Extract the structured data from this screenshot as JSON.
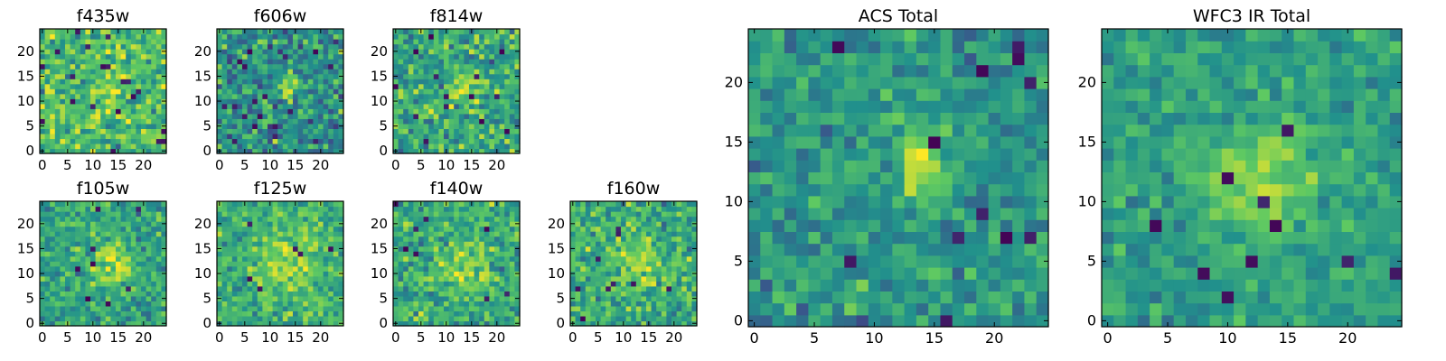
{
  "colormap": "viridis",
  "colormap_stops": [
    "#440154",
    "#3b528b",
    "#21918c",
    "#5ec962",
    "#fde725"
  ],
  "chart_data": [
    {
      "type": "heatmap",
      "title": "f435w",
      "size": 25,
      "xticks": [
        0,
        5,
        10,
        15,
        20
      ],
      "yticks": [
        0,
        5,
        10,
        15,
        20
      ],
      "tick_labels_x": [
        "0",
        "5",
        "10",
        "15",
        "20"
      ],
      "tick_labels_y": [
        "0",
        "5",
        "10",
        "15",
        "20"
      ],
      "source": {
        "cx": 14,
        "cy": 13,
        "amp": 0.22,
        "sigma": 2.0
      },
      "noise": 0.28,
      "baseline": 0.68,
      "seed": 11,
      "holes": 20
    },
    {
      "type": "heatmap",
      "title": "f606w",
      "size": 25,
      "xticks": [
        0,
        5,
        10,
        15,
        20
      ],
      "yticks": [
        0,
        5,
        10,
        15,
        20
      ],
      "tick_labels_x": [
        "0",
        "5",
        "10",
        "15",
        "20"
      ],
      "tick_labels_y": [
        "0",
        "5",
        "10",
        "15",
        "20"
      ],
      "source": {
        "cx": 14,
        "cy": 13,
        "amp": 0.3,
        "sigma": 1.6
      },
      "noise": 0.3,
      "baseline": 0.5,
      "seed": 23,
      "holes": 16
    },
    {
      "type": "heatmap",
      "title": "f814w",
      "size": 25,
      "xticks": [
        0,
        5,
        10,
        15,
        20
      ],
      "yticks": [
        0,
        5,
        10,
        15,
        20
      ],
      "tick_labels_x": [
        "0",
        "5",
        "10",
        "15",
        "20"
      ],
      "tick_labels_y": [
        "0",
        "5",
        "10",
        "15",
        "20"
      ],
      "source": {
        "cx": 14,
        "cy": 13,
        "amp": 0.25,
        "sigma": 2.2
      },
      "noise": 0.28,
      "baseline": 0.6,
      "seed": 37,
      "holes": 14
    },
    {
      "type": "heatmap",
      "title": "f105w",
      "size": 25,
      "xticks": [
        0,
        5,
        10,
        15,
        20
      ],
      "yticks": [
        0,
        5,
        10,
        15,
        20
      ],
      "tick_labels_x": [
        "0",
        "5",
        "10",
        "15",
        "20"
      ],
      "tick_labels_y": [
        "0",
        "5",
        "10",
        "15",
        "20"
      ],
      "source": {
        "cx": 14,
        "cy": 12,
        "amp": 0.3,
        "sigma": 3.0
      },
      "noise": 0.22,
      "baseline": 0.58,
      "seed": 41,
      "holes": 8
    },
    {
      "type": "heatmap",
      "title": "f125w",
      "size": 25,
      "xticks": [
        0,
        5,
        10,
        15,
        20
      ],
      "yticks": [
        0,
        5,
        10,
        15,
        20
      ],
      "tick_labels_x": [
        "0",
        "5",
        "10",
        "15",
        "20"
      ],
      "tick_labels_y": [
        "0",
        "5",
        "10",
        "15",
        "20"
      ],
      "source": {
        "cx": 13,
        "cy": 12,
        "amp": 0.25,
        "sigma": 3.5
      },
      "noise": 0.22,
      "baseline": 0.64,
      "seed": 53,
      "holes": 6
    },
    {
      "type": "heatmap",
      "title": "f140w",
      "size": 25,
      "xticks": [
        0,
        5,
        10,
        15,
        20
      ],
      "yticks": [
        0,
        5,
        10,
        15,
        20
      ],
      "tick_labels_x": [
        "0",
        "5",
        "10",
        "15",
        "20"
      ],
      "tick_labels_y": [
        "0",
        "5",
        "10",
        "15",
        "20"
      ],
      "source": {
        "cx": 13,
        "cy": 12,
        "amp": 0.22,
        "sigma": 3.5
      },
      "noise": 0.24,
      "baseline": 0.62,
      "seed": 67,
      "holes": 8
    },
    {
      "type": "heatmap",
      "title": "f160w",
      "size": 25,
      "xticks": [
        0,
        5,
        10,
        15,
        20
      ],
      "yticks": [
        0,
        5,
        10,
        15,
        20
      ],
      "tick_labels_x": [
        "0",
        "5",
        "10",
        "15",
        "20"
      ],
      "tick_labels_y": [
        "0",
        "5",
        "10",
        "15",
        "20"
      ],
      "source": {
        "cx": 13,
        "cy": 12,
        "amp": 0.2,
        "sigma": 3.5
      },
      "noise": 0.25,
      "baseline": 0.62,
      "seed": 79,
      "holes": 9
    },
    {
      "type": "heatmap",
      "title": "ACS Total",
      "size": 25,
      "xticks": [
        0,
        5,
        10,
        15,
        20
      ],
      "yticks": [
        0,
        5,
        10,
        15,
        20
      ],
      "tick_labels_x": [
        "0",
        "5",
        "10",
        "15",
        "20"
      ],
      "tick_labels_y": [
        "0",
        "5",
        "10",
        "15",
        "20"
      ],
      "source": {
        "cx": 14,
        "cy": 13,
        "amp": 0.4,
        "sigma": 1.7
      },
      "noise": 0.2,
      "baseline": 0.52,
      "seed": 97,
      "holes": 12
    },
    {
      "type": "heatmap",
      "title": "WFC3 IR Total",
      "size": 25,
      "xticks": [
        0,
        5,
        10,
        15,
        20
      ],
      "yticks": [
        0,
        5,
        10,
        15,
        20
      ],
      "tick_labels_x": [
        "0",
        "5",
        "10",
        "15",
        "20"
      ],
      "tick_labels_y": [
        "0",
        "5",
        "10",
        "15",
        "20"
      ],
      "source": {
        "cx": 13,
        "cy": 12,
        "amp": 0.32,
        "sigma": 3.0
      },
      "noise": 0.16,
      "baseline": 0.56,
      "seed": 113,
      "holes": 10
    }
  ]
}
